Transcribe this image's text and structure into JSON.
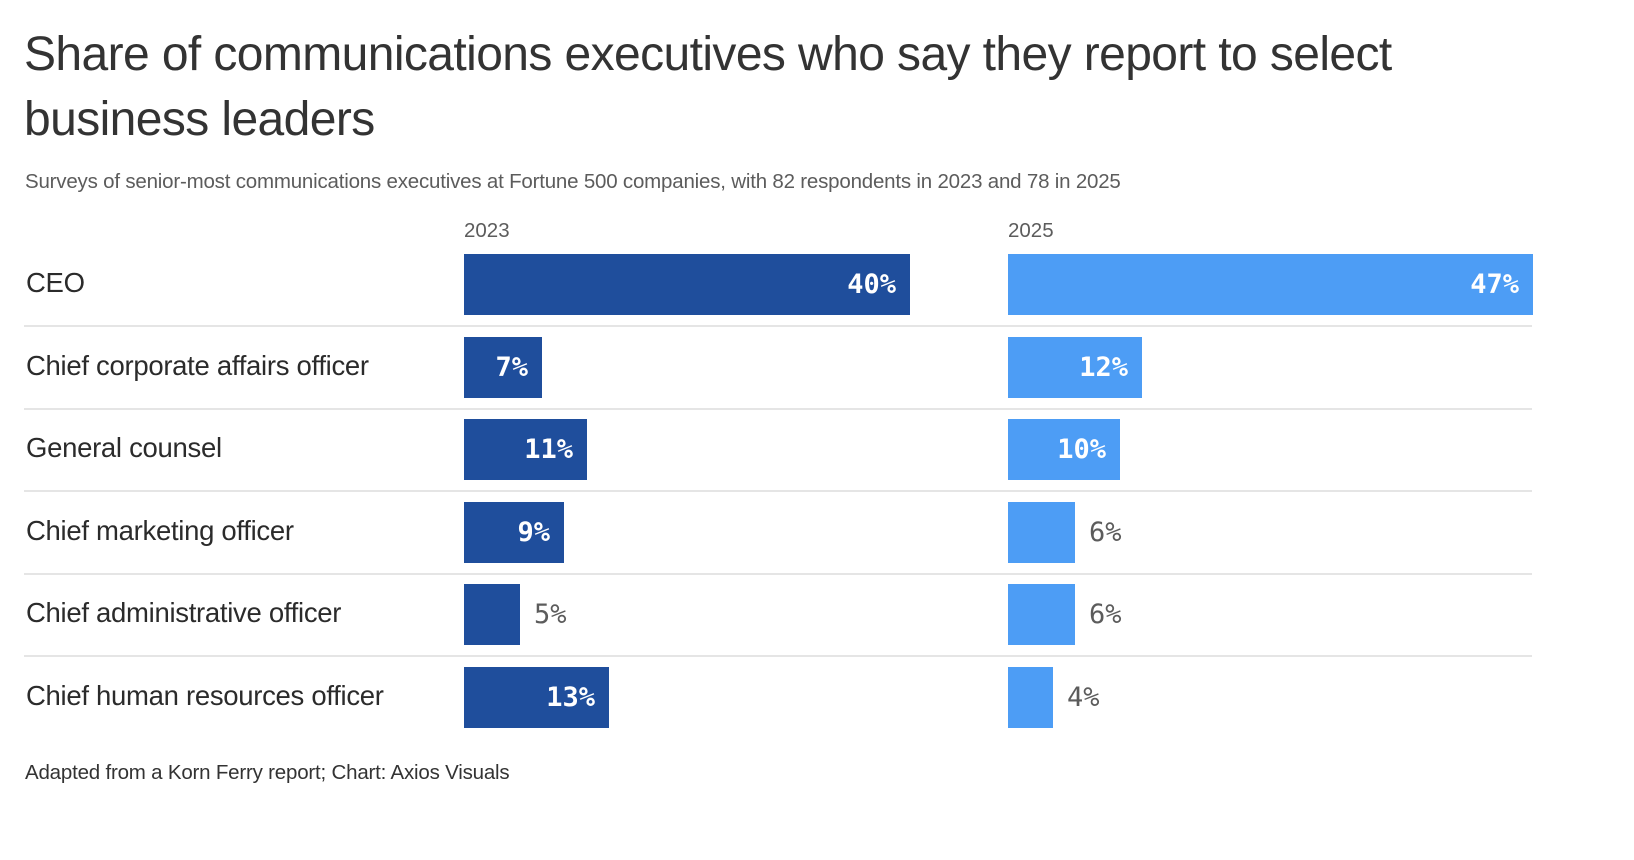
{
  "title": "Share of communications executives who say they report to select business leaders",
  "subtitle": "Surveys of senior-most communications executives at Fortune 500 companies, with 82 respondents in 2023 and 78 in 2025",
  "footer": "Adapted from a Korn Ferry report; Chart: Axios Visuals",
  "colors": {
    "series_2023": "#1f4e9c",
    "series_2025": "#4d9df5",
    "divider": "#e5e5e5",
    "label_inside": "#ffffff",
    "label_outside": "#5c5c5c"
  },
  "chart_data": {
    "type": "bar",
    "orientation": "horizontal",
    "layout": "small-multiples",
    "title": "Share of communications executives who say they report to select business leaders",
    "subtitle": "Surveys of senior-most communications executives at Fortune 500 companies, with 82 respondents in 2023 and 78 in 2025",
    "categories": [
      "CEO",
      "Chief corporate affairs officer",
      "General counsel",
      "Chief marketing officer",
      "Chief administrative officer",
      "Chief human resources officer"
    ],
    "series": [
      {
        "name": "2023",
        "values": [
          40,
          7,
          11,
          9,
          5,
          13
        ],
        "labels": [
          "40%",
          "7%",
          "11%",
          "9%",
          "5%",
          "13%"
        ]
      },
      {
        "name": "2025",
        "values": [
          47,
          12,
          10,
          6,
          6,
          4
        ],
        "labels": [
          "47%",
          "12%",
          "10%",
          "6%",
          "6%",
          "4%"
        ]
      }
    ],
    "unit": "%",
    "xlabel": "",
    "ylabel": "",
    "xlim": [
      0,
      47
    ],
    "grid": false,
    "legend": "none (series labeled by panel headers)",
    "source": "Adapted from a Korn Ferry report; Chart: Axios Visuals"
  }
}
